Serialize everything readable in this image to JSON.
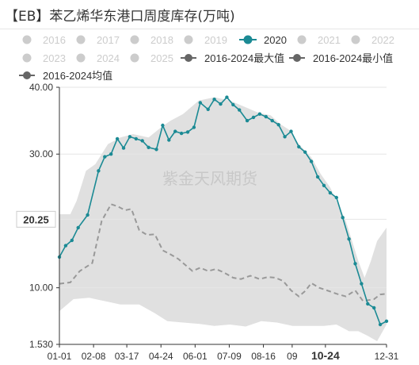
{
  "chart_data": {
    "type": "line",
    "title": "【EB】苯乙烯华东港口周度库存(万吨)",
    "watermark": "紫金天风期货",
    "y_axis": {
      "min": 1.53,
      "max": 40,
      "ticks": [
        1.53,
        10,
        20.25,
        30,
        40
      ],
      "tick_labels": [
        "1.530",
        "10.00",
        "20.25",
        "30.00",
        "40.00"
      ]
    },
    "x_axis": {
      "tick_labels": [
        "01-01",
        "02-08",
        "03-17",
        "04-24",
        "06-01",
        "07-09",
        "08-16",
        "09",
        "10-24",
        "12-31"
      ],
      "tick_days": [
        1,
        39,
        76,
        114,
        152,
        190,
        228,
        260,
        297,
        365
      ],
      "highlight_label": "10-24"
    },
    "highlight_value_label": "20.25",
    "legend": [
      {
        "label": "2016",
        "active": false,
        "style": "circle"
      },
      {
        "label": "2017",
        "active": false,
        "style": "circle"
      },
      {
        "label": "2018",
        "active": false,
        "style": "circle"
      },
      {
        "label": "2019",
        "active": false,
        "style": "circle"
      },
      {
        "label": "2020",
        "active": true,
        "style": "circle",
        "color": "#1b8a94"
      },
      {
        "label": "2021",
        "active": false,
        "style": "circle"
      },
      {
        "label": "2022",
        "active": false,
        "style": "circle"
      },
      {
        "label": "2023",
        "active": false,
        "style": "circle"
      },
      {
        "label": "2024",
        "active": false,
        "style": "circle"
      },
      {
        "label": "2025",
        "active": false,
        "style": "circle"
      },
      {
        "label": "2016-2024最大值",
        "active": true,
        "style": "line-dot",
        "color": "#666666"
      },
      {
        "label": "2016-2024最小值",
        "active": true,
        "style": "line-dot",
        "color": "#666666"
      },
      {
        "label": "2016-2024均值",
        "active": true,
        "style": "line-dot",
        "color": "#666666"
      }
    ],
    "series": [
      {
        "name": "2020",
        "style": "line",
        "color": "#1b8a94",
        "points": [
          [
            1,
            14.6
          ],
          [
            5,
            16.3
          ],
          [
            9,
            17.1
          ],
          [
            13,
            19
          ],
          [
            19,
            20.9
          ],
          [
            26,
            27.5
          ],
          [
            30,
            29.6
          ],
          [
            34,
            30
          ],
          [
            38,
            32.3
          ],
          [
            42,
            30.9
          ],
          [
            46,
            32.6
          ],
          [
            50,
            32.3
          ],
          [
            54,
            32
          ],
          [
            58,
            31
          ],
          [
            63,
            30.7
          ],
          [
            67,
            34.3
          ],
          [
            71,
            32.1
          ],
          [
            75,
            33.4
          ],
          [
            79,
            33.1
          ],
          [
            83,
            33.3
          ],
          [
            87,
            34
          ],
          [
            91,
            37.7
          ],
          [
            96,
            36.7
          ],
          [
            100,
            38.2
          ],
          [
            104,
            37.5
          ],
          [
            108,
            38.5
          ],
          [
            112,
            37.4
          ],
          [
            116,
            36.6
          ],
          [
            121,
            35
          ],
          [
            125,
            35.5
          ],
          [
            129,
            36
          ],
          [
            133,
            35.6
          ],
          [
            137,
            35
          ],
          [
            141,
            34.4
          ],
          [
            145,
            32.6
          ],
          [
            149,
            33.4
          ],
          [
            154,
            31.1
          ],
          [
            158,
            30.3
          ],
          [
            162,
            28.9
          ],
          [
            166,
            26.6
          ],
          [
            170,
            25.3
          ],
          [
            174,
            24.2
          ],
          [
            178,
            23.5
          ],
          [
            182,
            20.5
          ],
          [
            186,
            17.3
          ],
          [
            190,
            13.6
          ],
          [
            194,
            10.6
          ],
          [
            198,
            7.6
          ],
          [
            202,
            7
          ],
          [
            206,
            4.5
          ],
          [
            210,
            5
          ]
        ]
      },
      {
        "name": "2016-2024均值",
        "style": "dashed",
        "color": "#999999",
        "points": [
          [
            1,
            10.6
          ],
          [
            8,
            10.8
          ],
          [
            14,
            12.5
          ],
          [
            22,
            13.7
          ],
          [
            28,
            20
          ],
          [
            34,
            22.5
          ],
          [
            38,
            22.2
          ],
          [
            43,
            21.6
          ],
          [
            47,
            21.8
          ],
          [
            52,
            18.6
          ],
          [
            57,
            17.9
          ],
          [
            62,
            18
          ],
          [
            67,
            15.6
          ],
          [
            72,
            15
          ],
          [
            77,
            14.3
          ],
          [
            82,
            13.3
          ],
          [
            86,
            12.5
          ],
          [
            91,
            13
          ],
          [
            96,
            12.5
          ],
          [
            101,
            12.8
          ],
          [
            106,
            12.3
          ],
          [
            112,
            11.5
          ],
          [
            117,
            11.3
          ],
          [
            123,
            11.8
          ],
          [
            129,
            11.3
          ],
          [
            134,
            11.6
          ],
          [
            139,
            11.5
          ],
          [
            144,
            11
          ],
          [
            149,
            9.6
          ],
          [
            154,
            8.7
          ],
          [
            158,
            9.5
          ],
          [
            162,
            10.7
          ],
          [
            167,
            10
          ],
          [
            172,
            9.6
          ],
          [
            178,
            9.1
          ],
          [
            184,
            8.7
          ],
          [
            190,
            9.6
          ],
          [
            195,
            8
          ],
          [
            202,
            8.3
          ],
          [
            206,
            9
          ],
          [
            210,
            9.1
          ]
        ]
      },
      {
        "name": "2016-2024最大值",
        "style": "band-top",
        "color": "#e0e0e0",
        "points": [
          [
            1,
            21
          ],
          [
            8,
            21
          ],
          [
            12,
            23
          ],
          [
            18,
            27.5
          ],
          [
            24,
            28.5
          ],
          [
            32,
            31.5
          ],
          [
            40,
            32.5
          ],
          [
            48,
            33
          ],
          [
            58,
            32.5
          ],
          [
            66,
            34
          ],
          [
            72,
            35
          ],
          [
            80,
            36
          ],
          [
            90,
            38
          ],
          [
            100,
            38.5
          ],
          [
            110,
            38
          ],
          [
            120,
            37
          ],
          [
            128,
            36.2
          ],
          [
            136,
            35.8
          ],
          [
            142,
            34.5
          ],
          [
            148,
            33.6
          ],
          [
            154,
            31.5
          ],
          [
            162,
            29.5
          ],
          [
            168,
            27
          ],
          [
            174,
            25
          ],
          [
            178,
            23
          ],
          [
            184,
            20
          ],
          [
            188,
            17
          ],
          [
            192,
            14
          ],
          [
            196,
            11.5
          ],
          [
            200,
            14
          ],
          [
            204,
            17
          ],
          [
            210,
            19
          ]
        ]
      },
      {
        "name": "2016-2024最小值",
        "style": "band-bottom",
        "color": "#e0e0e0",
        "points": [
          [
            1,
            6.5
          ],
          [
            10,
            8.3
          ],
          [
            20,
            8.5
          ],
          [
            30,
            8
          ],
          [
            40,
            7.5
          ],
          [
            52,
            7.5
          ],
          [
            62,
            6.2
          ],
          [
            70,
            5
          ],
          [
            80,
            4.8
          ],
          [
            90,
            4.6
          ],
          [
            100,
            4.3
          ],
          [
            110,
            4.5
          ],
          [
            120,
            4.2
          ],
          [
            130,
            5
          ],
          [
            140,
            4.8
          ],
          [
            150,
            4.3
          ],
          [
            160,
            4.3
          ],
          [
            170,
            4.3
          ],
          [
            178,
            4.5
          ],
          [
            186,
            3.5
          ],
          [
            192,
            3.5
          ],
          [
            198,
            2.8
          ],
          [
            204,
            2
          ],
          [
            210,
            4.5
          ]
        ]
      }
    ]
  }
}
